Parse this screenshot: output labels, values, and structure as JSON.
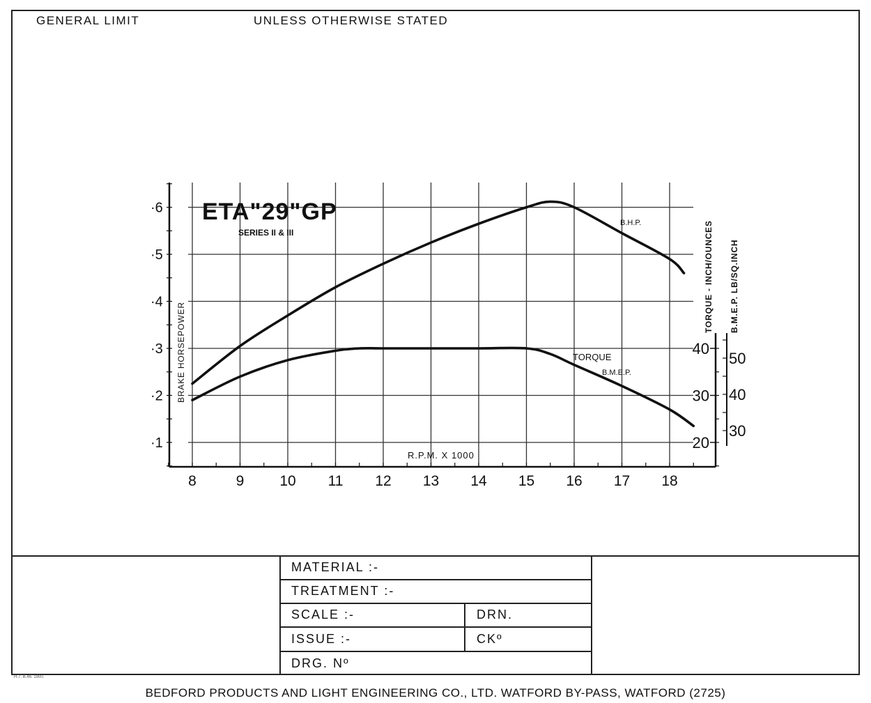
{
  "header": {
    "left": "GENERAL LIMIT",
    "right": "UNLESS OTHERWISE STATED"
  },
  "chart_data": {
    "type": "line",
    "title": "ETA\"29\"GP",
    "subtitle": "SERIES II & III",
    "xlabel": "R.P.M. X 1000",
    "ylabel_left": "BRAKE HORSEPOWER",
    "ylabel_right_1": "TORQUE - INCH/OUNCES",
    "ylabel_right_2": "B.M.E.P. LB/SQ.INCH",
    "xlim": [
      7.5,
      18.5
    ],
    "ylim": [
      0.05,
      0.65
    ],
    "grid": true,
    "x_ticks": [
      "8",
      "9",
      "10",
      "11",
      "12",
      "13",
      "14",
      "15",
      "16",
      "17",
      "18"
    ],
    "y_ticks": [
      "·1",
      "·2",
      "·3",
      "·4",
      "·5",
      "·6"
    ],
    "torque_ticks": [
      "20",
      "30",
      "40"
    ],
    "bmep_ticks": [
      "30",
      "40",
      "50"
    ],
    "series": [
      {
        "name": "B.H.P.",
        "x": [
          8,
          9,
          10,
          11,
          12,
          13,
          14,
          15,
          15.5,
          16,
          17,
          18,
          18.3
        ],
        "y": [
          0.225,
          0.305,
          0.37,
          0.43,
          0.48,
          0.525,
          0.565,
          0.6,
          0.612,
          0.6,
          0.545,
          0.49,
          0.46
        ]
      },
      {
        "name": "TORQUE B.M.E.P.",
        "x": [
          8,
          9,
          10,
          11,
          11.5,
          12,
          13,
          14,
          15,
          15.5,
          16,
          17,
          18,
          18.5
        ],
        "y": [
          0.19,
          0.24,
          0.275,
          0.295,
          0.3,
          0.3,
          0.3,
          0.3,
          0.3,
          0.288,
          0.265,
          0.22,
          0.17,
          0.135
        ]
      }
    ],
    "curve_labels": [
      "B.H.P.",
      "TORQUE",
      "B.M.E.P."
    ]
  },
  "title_block": {
    "material": "MATERIAL :-",
    "treatment": "TREATMENT :-",
    "scale": "SCALE :-",
    "drn": "DRN.",
    "issue": "ISSUE :-",
    "ckd": "CKº",
    "drg_no": "DRG. Nº"
  },
  "footer": {
    "company": "BEDFORD PRODUCTS AND LIGHT ENGINEERING CO., LTD. WATFORD BY-PASS, WATFORD (2725)",
    "print_code": "H.7. B.46. 1900."
  }
}
